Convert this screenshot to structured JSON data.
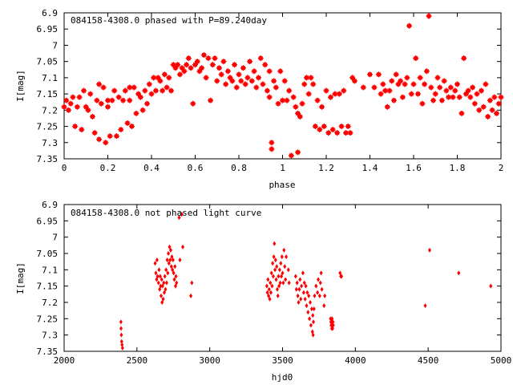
{
  "chart_data": [
    {
      "type": "scatter",
      "title": "084158-4308.0 phased with P=89.240day",
      "xlabel": "phase",
      "ylabel": "I[mag]",
      "xlim": [
        0,
        2
      ],
      "ylim": [
        7.35,
        6.9
      ],
      "y_inverted": true,
      "grid": false,
      "color": "#ff0000",
      "marker": "asterisk",
      "xticks": [
        0,
        0.2,
        0.4,
        0.6,
        0.8,
        1,
        1.2,
        1.4,
        1.6,
        1.8,
        2
      ],
      "xtick_labels": [
        "0",
        "0.2",
        "0.4",
        "0.6",
        "0.8",
        "1",
        "1.2",
        "1.4",
        "1.6",
        "1.8",
        "2"
      ],
      "yticks": [
        6.9,
        6.95,
        7,
        7.05,
        7.1,
        7.15,
        7.2,
        7.25,
        7.3,
        7.35
      ],
      "ytick_labels": [
        "6.9",
        "6.95",
        "7",
        "7.05",
        "7.1",
        "7.15",
        "7.2",
        "7.25",
        "7.3",
        "7.35"
      ],
      "points": [
        [
          0.0,
          7.19
        ],
        [
          0.01,
          7.17
        ],
        [
          0.02,
          7.2
        ],
        [
          0.03,
          7.18
        ],
        [
          0.04,
          7.16
        ],
        [
          0.05,
          7.25
        ],
        [
          0.06,
          7.19
        ],
        [
          0.07,
          7.16
        ],
        [
          0.08,
          7.26
        ],
        [
          0.09,
          7.14
        ],
        [
          0.1,
          7.19
        ],
        [
          0.11,
          7.2
        ],
        [
          0.12,
          7.15
        ],
        [
          0.13,
          7.22
        ],
        [
          0.14,
          7.27
        ],
        [
          0.15,
          7.17
        ],
        [
          0.16,
          7.12
        ],
        [
          0.16,
          7.29
        ],
        [
          0.17,
          7.18
        ],
        [
          0.18,
          7.13
        ],
        [
          0.19,
          7.3
        ],
        [
          0.2,
          7.17
        ],
        [
          0.2,
          7.19
        ],
        [
          0.21,
          7.28
        ],
        [
          0.22,
          7.17
        ],
        [
          0.23,
          7.14
        ],
        [
          0.24,
          7.28
        ],
        [
          0.25,
          7.16
        ],
        [
          0.26,
          7.26
        ],
        [
          0.27,
          7.17
        ],
        [
          0.28,
          7.14
        ],
        [
          0.29,
          7.24
        ],
        [
          0.3,
          7.13
        ],
        [
          0.3,
          7.17
        ],
        [
          0.31,
          7.25
        ],
        [
          0.32,
          7.13
        ],
        [
          0.33,
          7.21
        ],
        [
          0.34,
          7.15
        ],
        [
          0.35,
          7.16
        ],
        [
          0.36,
          7.2
        ],
        [
          0.37,
          7.14
        ],
        [
          0.38,
          7.18
        ],
        [
          0.39,
          7.12
        ],
        [
          0.4,
          7.15
        ],
        [
          0.41,
          7.1
        ],
        [
          0.42,
          7.14
        ],
        [
          0.43,
          7.1
        ],
        [
          0.44,
          7.11
        ],
        [
          0.45,
          7.14
        ],
        [
          0.46,
          7.09
        ],
        [
          0.47,
          7.13
        ],
        [
          0.48,
          7.1
        ],
        [
          0.49,
          7.14
        ],
        [
          0.5,
          7.06
        ],
        [
          0.51,
          7.07
        ],
        [
          0.52,
          7.06
        ],
        [
          0.53,
          7.09
        ],
        [
          0.54,
          7.07
        ],
        [
          0.55,
          7.08
        ],
        [
          0.56,
          7.06
        ],
        [
          0.57,
          7.04
        ],
        [
          0.58,
          7.07
        ],
        [
          0.59,
          7.18
        ],
        [
          0.6,
          7.06
        ],
        [
          0.61,
          7.05
        ],
        [
          0.62,
          7.08
        ],
        [
          0.63,
          7.07
        ],
        [
          0.64,
          7.03
        ],
        [
          0.65,
          7.1
        ],
        [
          0.66,
          7.04
        ],
        [
          0.67,
          7.17
        ],
        [
          0.68,
          7.06
        ],
        [
          0.69,
          7.04
        ],
        [
          0.7,
          7.11
        ],
        [
          0.71,
          7.07
        ],
        [
          0.72,
          7.09
        ],
        [
          0.73,
          7.05
        ],
        [
          0.74,
          7.12
        ],
        [
          0.75,
          7.08
        ],
        [
          0.76,
          7.1
        ],
        [
          0.77,
          7.11
        ],
        [
          0.78,
          7.06
        ],
        [
          0.79,
          7.13
        ],
        [
          0.8,
          7.09
        ],
        [
          0.81,
          7.11
        ],
        [
          0.82,
          7.07
        ],
        [
          0.83,
          7.12
        ],
        [
          0.84,
          7.1
        ],
        [
          0.85,
          7.05
        ],
        [
          0.86,
          7.11
        ],
        [
          0.87,
          7.08
        ],
        [
          0.88,
          7.13
        ],
        [
          0.89,
          7.1
        ],
        [
          0.9,
          7.04
        ],
        [
          0.91,
          7.12
        ],
        [
          0.92,
          7.06
        ],
        [
          0.93,
          7.14
        ],
        [
          0.94,
          7.16
        ],
        [
          0.94,
          7.08
        ],
        [
          0.95,
          7.3
        ],
        [
          0.95,
          7.32
        ],
        [
          0.96,
          7.11
        ],
        [
          0.97,
          7.13
        ],
        [
          0.98,
          7.18
        ],
        [
          0.99,
          7.08
        ],
        [
          1.0,
          7.17
        ],
        [
          1.01,
          7.11
        ],
        [
          1.02,
          7.17
        ],
        [
          1.03,
          7.14
        ],
        [
          1.04,
          7.34
        ],
        [
          1.05,
          7.16
        ],
        [
          1.06,
          7.19
        ],
        [
          1.07,
          7.21
        ],
        [
          1.07,
          7.33
        ],
        [
          1.08,
          7.22
        ],
        [
          1.09,
          7.18
        ],
        [
          1.1,
          7.12
        ],
        [
          1.11,
          7.1
        ],
        [
          1.12,
          7.15
        ],
        [
          1.13,
          7.1
        ],
        [
          1.14,
          7.12
        ],
        [
          1.15,
          7.25
        ],
        [
          1.16,
          7.17
        ],
        [
          1.17,
          7.26
        ],
        [
          1.18,
          7.19
        ],
        [
          1.19,
          7.25
        ],
        [
          1.2,
          7.14
        ],
        [
          1.21,
          7.27
        ],
        [
          1.22,
          7.16
        ],
        [
          1.23,
          7.26
        ],
        [
          1.24,
          7.15
        ],
        [
          1.25,
          7.27
        ],
        [
          1.26,
          7.15
        ],
        [
          1.27,
          7.25
        ],
        [
          1.28,
          7.14
        ],
        [
          1.29,
          7.27
        ],
        [
          1.3,
          7.25
        ],
        [
          1.31,
          7.27
        ],
        [
          1.32,
          7.1
        ],
        [
          1.33,
          7.11
        ],
        [
          1.37,
          7.13
        ],
        [
          1.4,
          7.09
        ],
        [
          1.42,
          7.13
        ],
        [
          1.44,
          7.09
        ],
        [
          1.45,
          7.15
        ],
        [
          1.46,
          7.12
        ],
        [
          1.47,
          7.14
        ],
        [
          1.48,
          7.19
        ],
        [
          1.49,
          7.14
        ],
        [
          1.5,
          7.11
        ],
        [
          1.51,
          7.17
        ],
        [
          1.52,
          7.09
        ],
        [
          1.53,
          7.12
        ],
        [
          1.54,
          7.11
        ],
        [
          1.55,
          7.16
        ],
        [
          1.56,
          7.12
        ],
        [
          1.57,
          7.1
        ],
        [
          1.58,
          6.94
        ],
        [
          1.59,
          7.15
        ],
        [
          1.6,
          7.12
        ],
        [
          1.61,
          7.04
        ],
        [
          1.62,
          7.15
        ],
        [
          1.63,
          7.1
        ],
        [
          1.64,
          7.18
        ],
        [
          1.65,
          7.12
        ],
        [
          1.66,
          7.08
        ],
        [
          1.67,
          6.91
        ],
        [
          1.68,
          7.13
        ],
        [
          1.69,
          7.17
        ],
        [
          1.7,
          7.15
        ],
        [
          1.71,
          7.1
        ],
        [
          1.72,
          7.13
        ],
        [
          1.73,
          7.17
        ],
        [
          1.74,
          7.11
        ],
        [
          1.75,
          7.14
        ],
        [
          1.76,
          7.16
        ],
        [
          1.77,
          7.13
        ],
        [
          1.78,
          7.16
        ],
        [
          1.79,
          7.14
        ],
        [
          1.8,
          7.12
        ],
        [
          1.81,
          7.16
        ],
        [
          1.82,
          7.21
        ],
        [
          1.83,
          7.04
        ],
        [
          1.84,
          7.15
        ],
        [
          1.85,
          7.14
        ],
        [
          1.86,
          7.16
        ],
        [
          1.87,
          7.13
        ],
        [
          1.88,
          7.18
        ],
        [
          1.89,
          7.15
        ],
        [
          1.9,
          7.2
        ],
        [
          1.91,
          7.14
        ],
        [
          1.92,
          7.19
        ],
        [
          1.93,
          7.12
        ],
        [
          1.94,
          7.22
        ],
        [
          1.95,
          7.17
        ],
        [
          1.96,
          7.2
        ],
        [
          1.97,
          7.16
        ],
        [
          1.98,
          7.21
        ],
        [
          1.99,
          7.18
        ],
        [
          2.0,
          7.16
        ]
      ]
    },
    {
      "type": "scatter",
      "title": "084158-4308.0 not phased light curve",
      "xlabel": "hjd0",
      "ylabel": "I[mag]",
      "xlim": [
        2000,
        5000
      ],
      "ylim": [
        7.35,
        6.9
      ],
      "y_inverted": true,
      "grid": false,
      "color": "#ff0000",
      "marker": "diamond",
      "xticks": [
        2000,
        2500,
        3000,
        3500,
        4000,
        4500,
        5000
      ],
      "xtick_labels": [
        "2000",
        "2500",
        "3000",
        "3500",
        "4000",
        "4500",
        "5000"
      ],
      "yticks": [
        6.9,
        6.95,
        7,
        7.05,
        7.1,
        7.15,
        7.2,
        7.25,
        7.3,
        7.35
      ],
      "ytick_labels": [
        "6.9",
        "6.95",
        "7",
        "7.05",
        "7.1",
        "7.15",
        "7.2",
        "7.25",
        "7.3",
        "7.35"
      ],
      "points": [
        [
          2390,
          7.26
        ],
        [
          2391,
          7.28
        ],
        [
          2393,
          7.3
        ],
        [
          2395,
          7.32
        ],
        [
          2398,
          7.33
        ],
        [
          2401,
          7.34
        ],
        [
          2625,
          7.08
        ],
        [
          2630,
          7.11
        ],
        [
          2635,
          7.13
        ],
        [
          2638,
          7.07
        ],
        [
          2642,
          7.12
        ],
        [
          2648,
          7.14
        ],
        [
          2652,
          7.1
        ],
        [
          2656,
          7.16
        ],
        [
          2660,
          7.12
        ],
        [
          2663,
          7.15
        ],
        [
          2666,
          7.18
        ],
        [
          2670,
          7.13
        ],
        [
          2673,
          7.2
        ],
        [
          2676,
          7.15
        ],
        [
          2680,
          7.19
        ],
        [
          2684,
          7.14
        ],
        [
          2688,
          7.17
        ],
        [
          2692,
          7.12
        ],
        [
          2696,
          7.16
        ],
        [
          2700,
          7.1
        ],
        [
          2704,
          7.14
        ],
        [
          2708,
          7.07
        ],
        [
          2712,
          7.11
        ],
        [
          2716,
          7.05
        ],
        [
          2720,
          7.08
        ],
        [
          2724,
          7.03
        ],
        [
          2728,
          7.07
        ],
        [
          2732,
          7.04
        ],
        [
          2736,
          7.09
        ],
        [
          2740,
          7.06
        ],
        [
          2744,
          7.1
        ],
        [
          2748,
          7.07
        ],
        [
          2752,
          7.11
        ],
        [
          2757,
          7.13
        ],
        [
          2761,
          7.09
        ],
        [
          2765,
          7.15
        ],
        [
          2768,
          7.12
        ],
        [
          2772,
          7.14
        ],
        [
          2790,
          6.94
        ],
        [
          2795,
          7.07
        ],
        [
          2808,
          6.93
        ],
        [
          2815,
          7.03
        ],
        [
          2870,
          7.18
        ],
        [
          2877,
          7.14
        ],
        [
          3392,
          7.15
        ],
        [
          3396,
          7.17
        ],
        [
          3400,
          7.13
        ],
        [
          3404,
          7.18
        ],
        [
          3408,
          7.16
        ],
        [
          3412,
          7.19
        ],
        [
          3416,
          7.14
        ],
        [
          3420,
          7.17
        ],
        [
          3424,
          7.11
        ],
        [
          3428,
          7.15
        ],
        [
          3432,
          7.08
        ],
        [
          3436,
          7.12
        ],
        [
          3440,
          7.06
        ],
        [
          3444,
          7.02
        ],
        [
          3448,
          7.1
        ],
        [
          3452,
          7.07
        ],
        [
          3456,
          7.13
        ],
        [
          3460,
          7.09
        ],
        [
          3464,
          7.16
        ],
        [
          3468,
          7.18
        ],
        [
          3472,
          7.12
        ],
        [
          3476,
          7.15
        ],
        [
          3480,
          7.1
        ],
        [
          3484,
          7.14
        ],
        [
          3488,
          7.08
        ],
        [
          3492,
          7.12
        ],
        [
          3496,
          7.06
        ],
        [
          3500,
          7.11
        ],
        [
          3505,
          7.14
        ],
        [
          3510,
          7.04
        ],
        [
          3515,
          7.09
        ],
        [
          3520,
          7.13
        ],
        [
          3525,
          7.06
        ],
        [
          3540,
          7.1
        ],
        [
          3545,
          7.14
        ],
        [
          3590,
          7.12
        ],
        [
          3595,
          7.16
        ],
        [
          3600,
          7.14
        ],
        [
          3605,
          7.18
        ],
        [
          3610,
          7.2
        ],
        [
          3615,
          7.16
        ],
        [
          3620,
          7.13
        ],
        [
          3625,
          7.19
        ],
        [
          3630,
          7.15
        ],
        [
          3640,
          7.11
        ],
        [
          3645,
          7.17
        ],
        [
          3650,
          7.14
        ],
        [
          3655,
          7.19
        ],
        [
          3660,
          7.15
        ],
        [
          3665,
          7.21
        ],
        [
          3670,
          7.17
        ],
        [
          3675,
          7.23
        ],
        [
          3680,
          7.18
        ],
        [
          3685,
          7.25
        ],
        [
          3690,
          7.2
        ],
        [
          3695,
          7.27
        ],
        [
          3700,
          7.22
        ],
        [
          3705,
          7.29
        ],
        [
          3708,
          7.24
        ],
        [
          3710,
          7.3
        ],
        [
          3712,
          7.26
        ],
        [
          3716,
          7.22
        ],
        [
          3720,
          7.18
        ],
        [
          3730,
          7.15
        ],
        [
          3740,
          7.17
        ],
        [
          3745,
          7.13
        ],
        [
          3755,
          7.18
        ],
        [
          3760,
          7.14
        ],
        [
          3765,
          7.11
        ],
        [
          3770,
          7.16
        ],
        [
          3785,
          7.21
        ],
        [
          3790,
          7.18
        ],
        [
          3830,
          7.25
        ],
        [
          3832,
          7.26
        ],
        [
          3834,
          7.27
        ],
        [
          3836,
          7.26
        ],
        [
          3838,
          7.28
        ],
        [
          3840,
          7.25
        ],
        [
          3842,
          7.27
        ],
        [
          3844,
          7.28
        ],
        [
          3846,
          7.26
        ],
        [
          3848,
          7.27
        ],
        [
          3895,
          7.11
        ],
        [
          3900,
          7.12
        ],
        [
          3905,
          7.12
        ],
        [
          4480,
          7.21
        ],
        [
          4510,
          7.04
        ],
        [
          4710,
          7.11
        ],
        [
          4930,
          7.15
        ]
      ]
    }
  ]
}
